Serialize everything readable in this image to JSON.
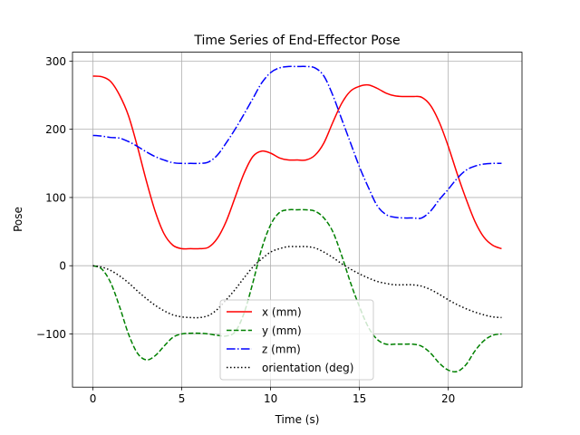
{
  "chart_data": {
    "type": "line",
    "title": "Time Series of End-Effector Pose",
    "xlabel": "Time (s)",
    "ylabel": "Pose",
    "xlim": [
      -1.15,
      24.15
    ],
    "ylim": [
      -178,
      313
    ],
    "xticks": [
      0,
      5,
      10,
      15,
      20
    ],
    "yticks": [
      -100,
      0,
      100,
      200,
      300
    ],
    "xtick_labels": [
      "0",
      "5",
      "10",
      "15",
      "20"
    ],
    "ytick_labels": [
      "−100",
      "0",
      "100",
      "200",
      "300"
    ],
    "grid": true,
    "legend_position": "lower-center",
    "series": [
      {
        "name": "x (mm)",
        "color": "#ff0000",
        "style": "solid",
        "points": [
          [
            0,
            278
          ],
          [
            0.5,
            277
          ],
          [
            1,
            270
          ],
          [
            1.5,
            250
          ],
          [
            2,
            220
          ],
          [
            2.5,
            175
          ],
          [
            3,
            125
          ],
          [
            3.5,
            80
          ],
          [
            4,
            47
          ],
          [
            4.5,
            30
          ],
          [
            5,
            25
          ],
          [
            5.5,
            25
          ],
          [
            6,
            25
          ],
          [
            6.5,
            27
          ],
          [
            7,
            40
          ],
          [
            7.5,
            65
          ],
          [
            8,
            100
          ],
          [
            8.5,
            135
          ],
          [
            9,
            160
          ],
          [
            9.5,
            168
          ],
          [
            10,
            165
          ],
          [
            10.5,
            158
          ],
          [
            11,
            155
          ],
          [
            11.5,
            155
          ],
          [
            12,
            155
          ],
          [
            12.5,
            162
          ],
          [
            13,
            180
          ],
          [
            13.5,
            210
          ],
          [
            14,
            238
          ],
          [
            14.5,
            256
          ],
          [
            15,
            263
          ],
          [
            15.5,
            265
          ],
          [
            16,
            260
          ],
          [
            16.5,
            253
          ],
          [
            17,
            249
          ],
          [
            17.5,
            248
          ],
          [
            18,
            248
          ],
          [
            18.5,
            247
          ],
          [
            19,
            235
          ],
          [
            19.5,
            210
          ],
          [
            20,
            175
          ],
          [
            20.5,
            135
          ],
          [
            21,
            98
          ],
          [
            21.5,
            65
          ],
          [
            22,
            42
          ],
          [
            22.5,
            30
          ],
          [
            23,
            25
          ]
        ]
      },
      {
        "name": "y (mm)",
        "color": "#008000",
        "style": "dashed",
        "points": [
          [
            0,
            0
          ],
          [
            0.5,
            -5
          ],
          [
            1,
            -25
          ],
          [
            1.5,
            -60
          ],
          [
            2,
            -100
          ],
          [
            2.5,
            -128
          ],
          [
            3,
            -138
          ],
          [
            3.5,
            -132
          ],
          [
            4,
            -118
          ],
          [
            4.5,
            -105
          ],
          [
            5,
            -100
          ],
          [
            5.5,
            -99
          ],
          [
            6,
            -99
          ],
          [
            6.5,
            -100
          ],
          [
            7,
            -102
          ],
          [
            7.5,
            -103
          ],
          [
            8,
            -97
          ],
          [
            8.5,
            -70
          ],
          [
            9,
            -25
          ],
          [
            9.5,
            25
          ],
          [
            10,
            60
          ],
          [
            10.5,
            78
          ],
          [
            11,
            82
          ],
          [
            11.5,
            82
          ],
          [
            12,
            82
          ],
          [
            12.5,
            80
          ],
          [
            13,
            70
          ],
          [
            13.5,
            50
          ],
          [
            14,
            15
          ],
          [
            14.5,
            -25
          ],
          [
            15,
            -60
          ],
          [
            15.5,
            -90
          ],
          [
            16,
            -108
          ],
          [
            16.5,
            -115
          ],
          [
            17,
            -115
          ],
          [
            17.5,
            -115
          ],
          [
            18,
            -115
          ],
          [
            18.5,
            -118
          ],
          [
            19,
            -128
          ],
          [
            19.5,
            -143
          ],
          [
            20,
            -153
          ],
          [
            20.5,
            -155
          ],
          [
            21,
            -145
          ],
          [
            21.5,
            -125
          ],
          [
            22,
            -110
          ],
          [
            22.5,
            -102
          ],
          [
            23,
            -100
          ]
        ]
      },
      {
        "name": "z (mm)",
        "color": "#0000ff",
        "style": "dashdot",
        "points": [
          [
            0,
            191
          ],
          [
            0.5,
            190
          ],
          [
            1,
            188
          ],
          [
            1.5,
            187
          ],
          [
            2,
            182
          ],
          [
            2.5,
            175
          ],
          [
            3,
            167
          ],
          [
            3.5,
            160
          ],
          [
            4,
            155
          ],
          [
            4.5,
            151
          ],
          [
            5,
            150
          ],
          [
            5.5,
            150
          ],
          [
            6,
            150
          ],
          [
            6.5,
            152
          ],
          [
            7,
            162
          ],
          [
            7.5,
            180
          ],
          [
            8,
            200
          ],
          [
            8.5,
            222
          ],
          [
            9,
            245
          ],
          [
            9.5,
            268
          ],
          [
            10,
            283
          ],
          [
            10.5,
            290
          ],
          [
            11,
            292
          ],
          [
            11.5,
            292
          ],
          [
            12,
            292
          ],
          [
            12.5,
            290
          ],
          [
            13,
            278
          ],
          [
            13.5,
            250
          ],
          [
            14,
            215
          ],
          [
            14.5,
            180
          ],
          [
            15,
            145
          ],
          [
            15.5,
            115
          ],
          [
            16,
            88
          ],
          [
            16.5,
            75
          ],
          [
            17,
            71
          ],
          [
            17.5,
            70
          ],
          [
            18,
            70
          ],
          [
            18.5,
            70
          ],
          [
            19,
            80
          ],
          [
            19.5,
            97
          ],
          [
            20,
            112
          ],
          [
            20.5,
            128
          ],
          [
            21,
            140
          ],
          [
            21.5,
            146
          ],
          [
            22,
            149
          ],
          [
            22.5,
            150
          ],
          [
            23,
            150
          ]
        ]
      },
      {
        "name": "orientation (deg)",
        "color": "#000000",
        "style": "dotted",
        "points": [
          [
            0,
            0
          ],
          [
            0.5,
            -2
          ],
          [
            1,
            -7
          ],
          [
            1.5,
            -15
          ],
          [
            2,
            -25
          ],
          [
            2.5,
            -37
          ],
          [
            3,
            -48
          ],
          [
            3.5,
            -58
          ],
          [
            4,
            -66
          ],
          [
            4.5,
            -72
          ],
          [
            5,
            -75
          ],
          [
            5.5,
            -76
          ],
          [
            6,
            -76
          ],
          [
            6.5,
            -73
          ],
          [
            7,
            -64
          ],
          [
            7.5,
            -50
          ],
          [
            8,
            -35
          ],
          [
            8.5,
            -18
          ],
          [
            9,
            -2
          ],
          [
            9.5,
            10
          ],
          [
            10,
            20
          ],
          [
            10.5,
            25
          ],
          [
            11,
            28
          ],
          [
            11.5,
            28
          ],
          [
            12,
            28
          ],
          [
            12.5,
            26
          ],
          [
            13,
            20
          ],
          [
            13.5,
            12
          ],
          [
            14,
            3
          ],
          [
            14.5,
            -5
          ],
          [
            15,
            -12
          ],
          [
            15.5,
            -18
          ],
          [
            16,
            -23
          ],
          [
            16.5,
            -26
          ],
          [
            17,
            -28
          ],
          [
            17.5,
            -28
          ],
          [
            18,
            -28
          ],
          [
            18.5,
            -30
          ],
          [
            19,
            -35
          ],
          [
            19.5,
            -42
          ],
          [
            20,
            -50
          ],
          [
            20.5,
            -57
          ],
          [
            21,
            -63
          ],
          [
            21.5,
            -68
          ],
          [
            22,
            -72
          ],
          [
            22.5,
            -75
          ],
          [
            23,
            -76
          ]
        ]
      }
    ]
  }
}
